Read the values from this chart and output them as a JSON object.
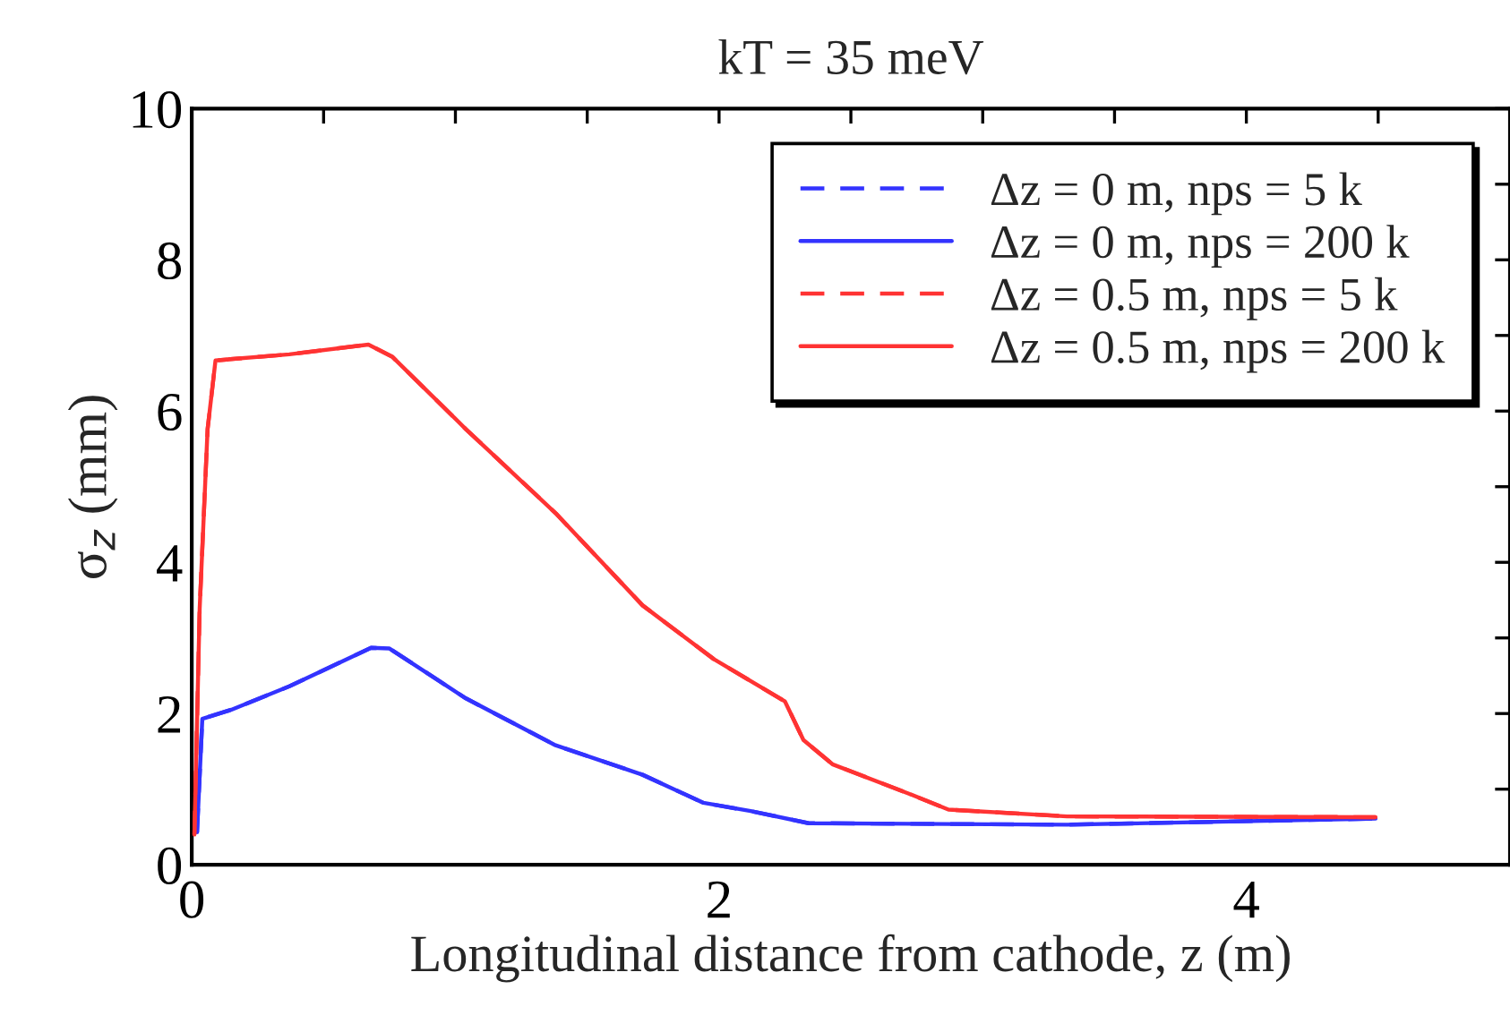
{
  "chart_data": {
    "type": "line",
    "title": "kT = 35 meV",
    "xlabel": "Longitudinal distance from cathode, z (m)",
    "ylabel": "σ$_{z}$ (mm)",
    "xlim": [
      0,
      5
    ],
    "ylim": [
      0,
      10
    ],
    "xticks": [
      0,
      {
        "value": 0.5,
        "label": null
      },
      {
        "value": 1,
        "label": null
      },
      {
        "value": 1.5,
        "label": null
      },
      2,
      {
        "value": 2.5,
        "label": null
      },
      {
        "value": 3,
        "label": null
      },
      {
        "value": 3.5,
        "label": null
      },
      4,
      {
        "value": 4.5,
        "label": null
      }
    ],
    "yticks": [
      0,
      {
        "value": 1,
        "label": null
      },
      2,
      {
        "value": 3,
        "label": null
      },
      4,
      {
        "value": 5,
        "label": null
      },
      6,
      {
        "value": 7,
        "label": null
      },
      8,
      {
        "value": 9,
        "label": null
      },
      10
    ],
    "grid": false,
    "legend": "top right",
    "marker": "none",
    "series": [
      {
        "name": "Δz = 0 m, nps = 5 k",
        "color": "#3333ff",
        "line_style": "dashed",
        "x": [
          0.02,
          0.04,
          0.15,
          0.37,
          0.68,
          0.75,
          1.04,
          1.38,
          1.71,
          1.94,
          2.12,
          2.34,
          3.32,
          4.49
        ],
        "values": [
          0.43,
          1.93,
          2.05,
          2.36,
          2.87,
          2.86,
          2.2,
          1.58,
          1.19,
          0.82,
          0.71,
          0.55,
          0.53,
          0.61
        ]
      },
      {
        "name": "Δz = 0 m, nps = 200 k",
        "color": "#3333ff",
        "line_style": "solid",
        "x": [
          0.02,
          0.04,
          0.15,
          0.37,
          0.68,
          0.75,
          1.04,
          1.38,
          1.71,
          1.94,
          2.12,
          2.34,
          3.32,
          4.49
        ],
        "values": [
          0.43,
          1.93,
          2.05,
          2.36,
          2.87,
          2.86,
          2.2,
          1.58,
          1.19,
          0.82,
          0.71,
          0.55,
          0.53,
          0.61
        ]
      },
      {
        "name": "Δz = 0.5 m, nps = 5 k",
        "color": "#ff3333",
        "line_style": "dashed",
        "x": [
          0.01,
          0.03,
          0.06,
          0.09,
          0.37,
          0.67,
          0.76,
          1.04,
          1.38,
          1.71,
          1.98,
          2.25,
          2.32,
          2.43,
          2.72,
          2.87,
          3.32,
          4.49
        ],
        "values": [
          0.4,
          3.39,
          5.76,
          6.67,
          6.75,
          6.88,
          6.72,
          5.76,
          4.65,
          3.43,
          2.72,
          2.16,
          1.65,
          1.33,
          0.94,
          0.73,
          0.64,
          0.63
        ]
      },
      {
        "name": "Δz = 0.5 m, nps = 200 k",
        "color": "#ff3333",
        "line_style": "solid",
        "x": [
          0.01,
          0.03,
          0.06,
          0.09,
          0.37,
          0.67,
          0.76,
          1.04,
          1.38,
          1.71,
          1.98,
          2.25,
          2.32,
          2.43,
          2.72,
          2.87,
          3.32,
          4.49
        ],
        "values": [
          0.4,
          3.39,
          5.76,
          6.67,
          6.75,
          6.88,
          6.72,
          5.76,
          4.65,
          3.43,
          2.72,
          2.16,
          1.65,
          1.33,
          0.94,
          0.73,
          0.64,
          0.63
        ]
      }
    ]
  }
}
